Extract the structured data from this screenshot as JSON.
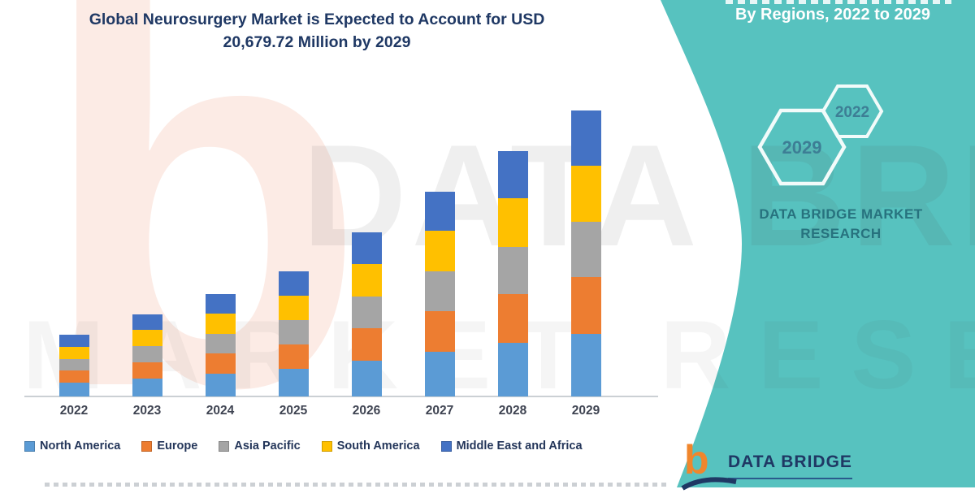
{
  "title": {
    "line1": "Global Neurosurgery Market is Expected to Account for USD",
    "line2": "20,679.72 Million by 2029"
  },
  "right_panel": {
    "subtitle": "By Regions, 2022 to 2029",
    "hexagon_back_label": "2029",
    "hexagon_front_label": "2022",
    "brand_line1": "DATA BRIDGE MARKET",
    "brand_line2": "RESEARCH",
    "logo_text": "DATA BRIDGE",
    "background_color": "#57C2BF"
  },
  "watermarks": {
    "logo_letter": "b",
    "text_line1": "DATA BRIDGE",
    "text_line2": "MARKET RESEARCH"
  },
  "chart_data": {
    "type": "bar",
    "stacked": true,
    "title": "Global Neurosurgery Market is Expected to Account for USD 20,679.72 Million by 2029",
    "unit": "USD Million",
    "categories": [
      "2022",
      "2023",
      "2024",
      "2025",
      "2026",
      "2027",
      "2028",
      "2029"
    ],
    "series": [
      {
        "name": "North America",
        "color": "#5B9BD5",
        "values": [
          982,
          1306,
          1629,
          1991,
          2611,
          3257,
          3904,
          4550
        ]
      },
      {
        "name": "Europe",
        "color": "#ED7D31",
        "values": [
          880,
          1169,
          1458,
          1783,
          2338,
          2917,
          3495,
          4074
        ]
      },
      {
        "name": "Asia Pacific",
        "color": "#A5A5A5",
        "values": [
          862,
          1145,
          1429,
          1746,
          2291,
          2857,
          3424,
          3991
        ]
      },
      {
        "name": "South America",
        "color": "#FFC000",
        "values": [
          884,
          1175,
          1466,
          1792,
          2350,
          2931,
          3513,
          4095
        ]
      },
      {
        "name": "Middle East and Africa",
        "color": "#4472C4",
        "values": [
          858,
          1139,
          1421,
          1737,
          2279,
          2843,
          3407,
          3970
        ]
      }
    ],
    "totals_estimated": [
      4466,
      5934,
      7403,
      9049,
      11869,
      14805,
      17743,
      20680
    ],
    "ylim": [
      0,
      20680
    ],
    "grid": false,
    "legend_position": "bottom"
  }
}
